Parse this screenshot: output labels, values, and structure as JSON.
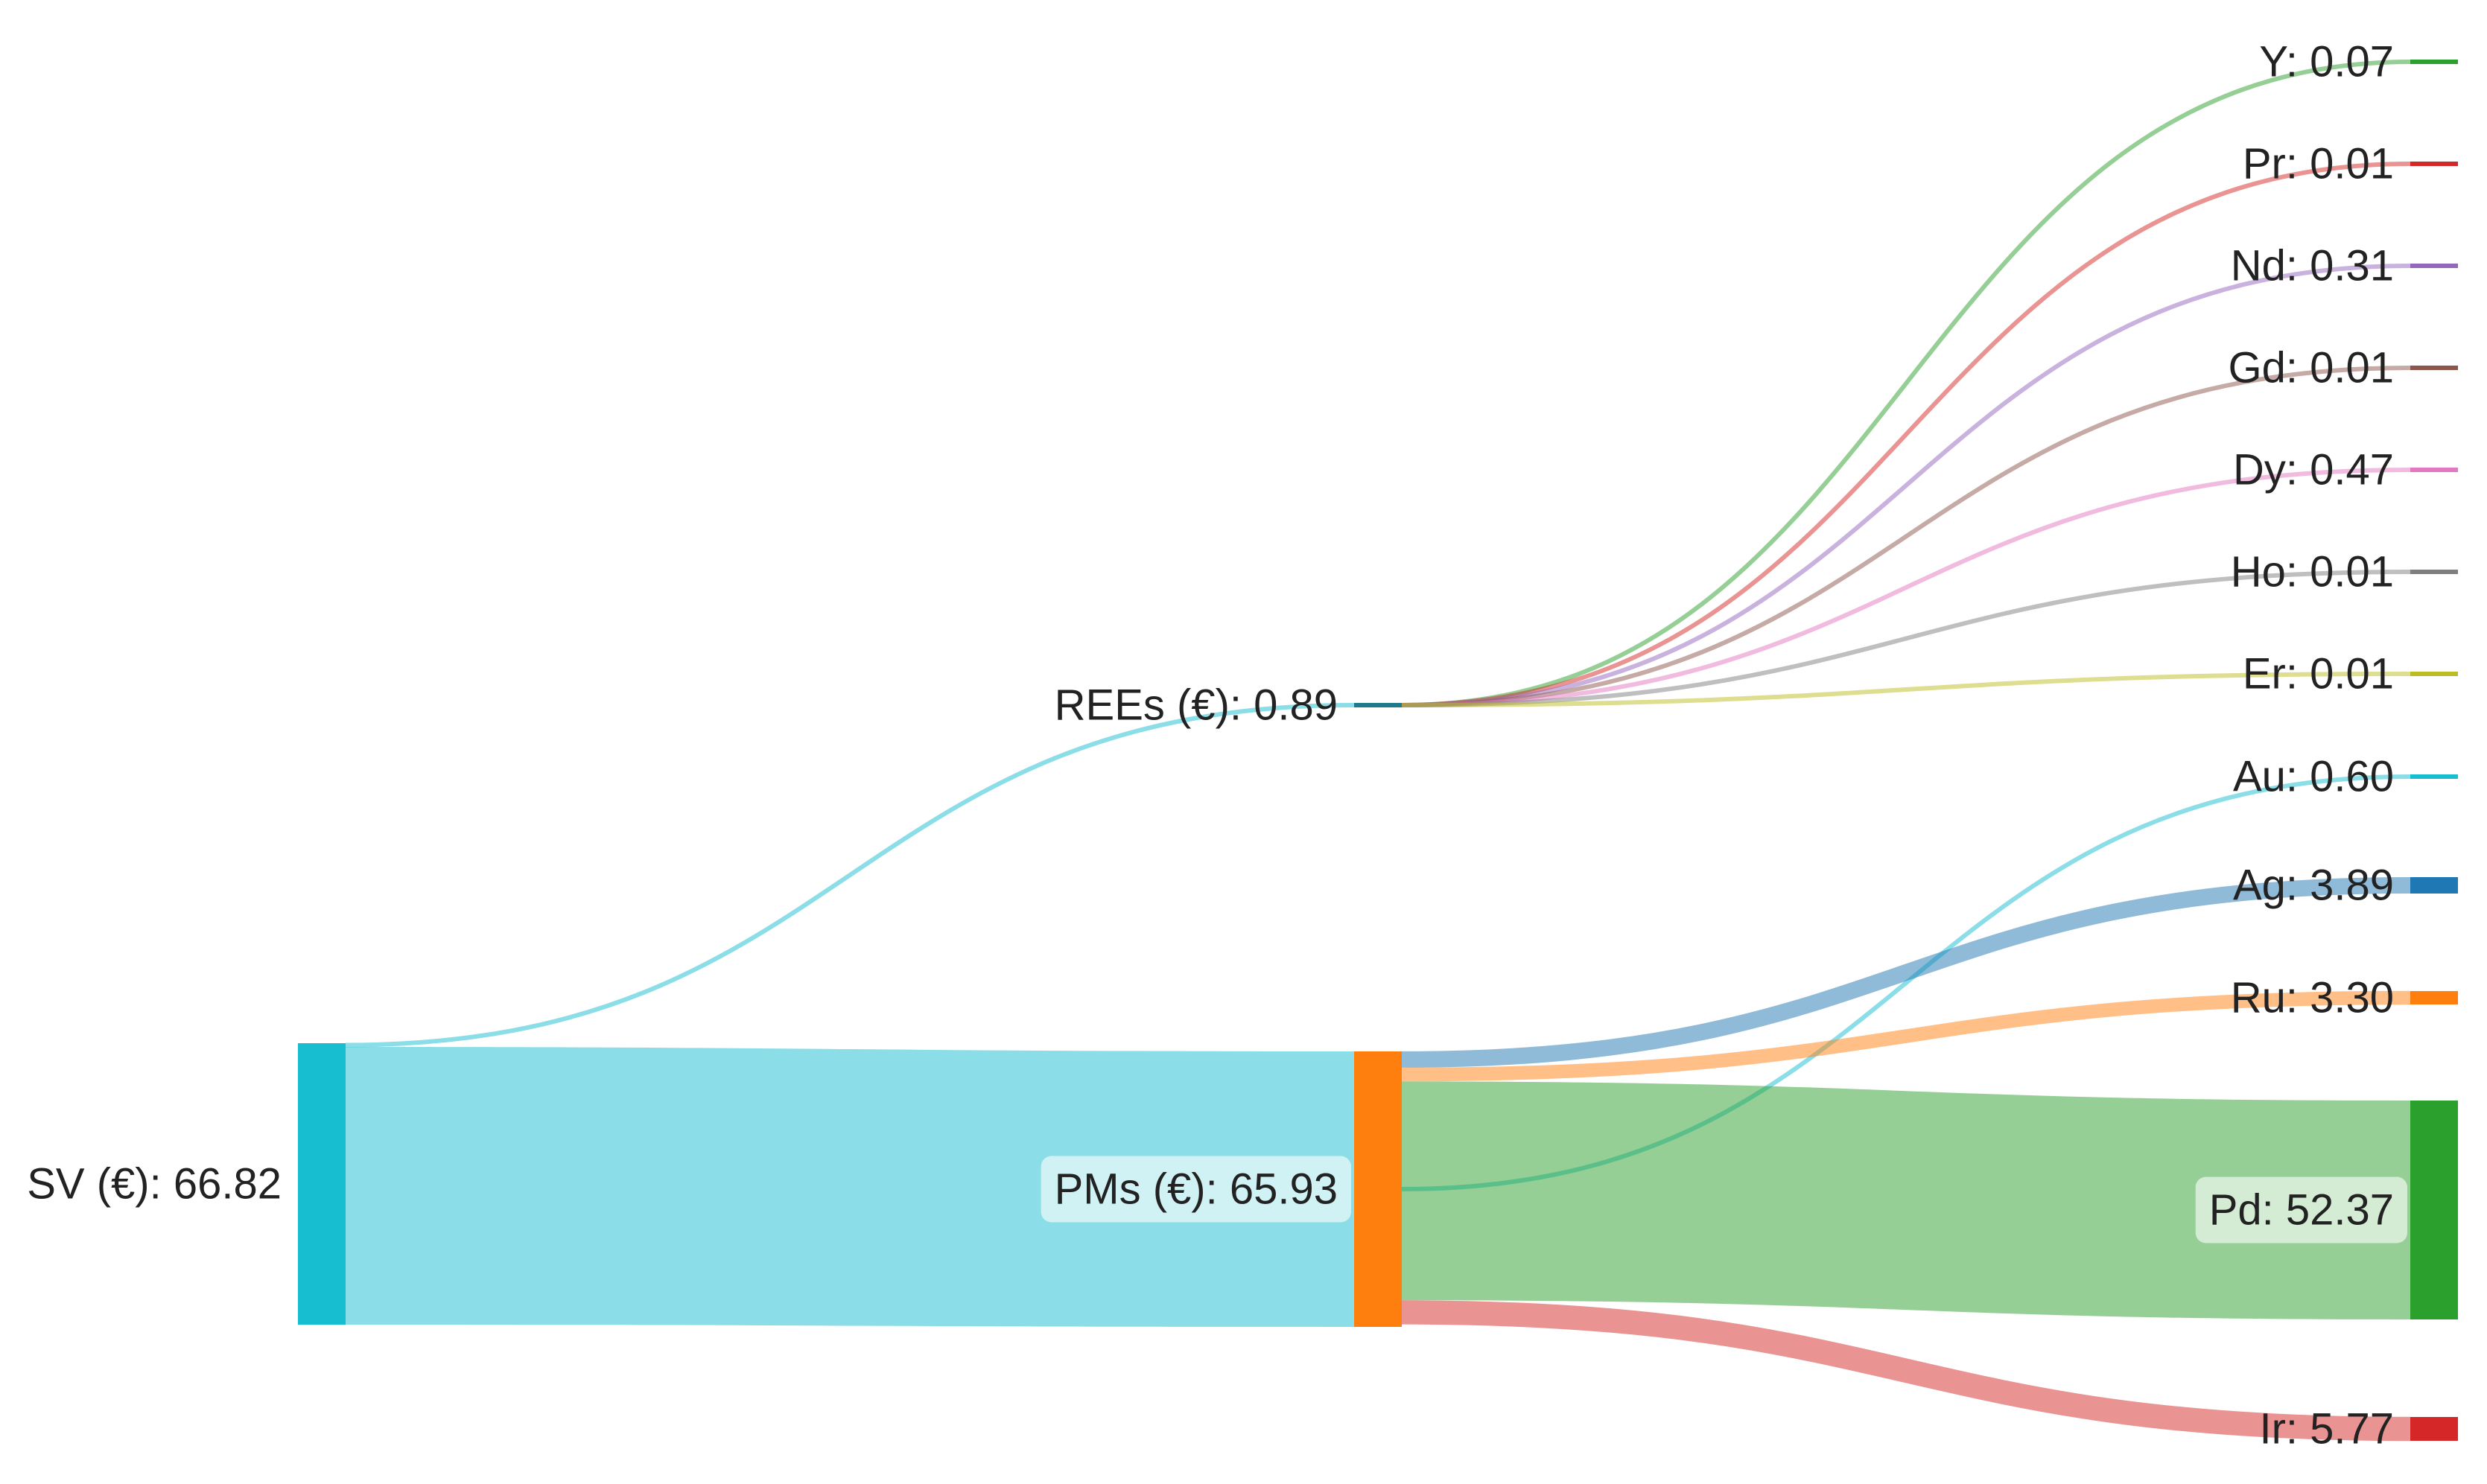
{
  "chart_data": {
    "type": "sankey",
    "nodes": [
      {
        "id": "SV",
        "label": "SV (€): 66.82",
        "value": 66.82,
        "color": "#17becf"
      },
      {
        "id": "REEs",
        "label": "REEs (€): 0.89",
        "value": 0.89,
        "color": "#1f7a8c"
      },
      {
        "id": "PMs",
        "label": "PMs (€): 65.93",
        "value": 65.93,
        "color": "#ff7f0e"
      },
      {
        "id": "Y",
        "label": "Y: 0.07",
        "value": 0.07,
        "color": "#2ca02c"
      },
      {
        "id": "Pr",
        "label": "Pr: 0.01",
        "value": 0.01,
        "color": "#d62728"
      },
      {
        "id": "Nd",
        "label": "Nd: 0.31",
        "value": 0.31,
        "color": "#9467bd"
      },
      {
        "id": "Gd",
        "label": "Gd: 0.01",
        "value": 0.01,
        "color": "#8c564b"
      },
      {
        "id": "Dy",
        "label": "Dy: 0.47",
        "value": 0.47,
        "color": "#e377c2"
      },
      {
        "id": "Ho",
        "label": "Ho: 0.01",
        "value": 0.01,
        "color": "#7f7f7f"
      },
      {
        "id": "Er",
        "label": "Er: 0.01",
        "value": 0.01,
        "color": "#bcbd22"
      },
      {
        "id": "Au",
        "label": "Au: 0.60",
        "value": 0.6,
        "color": "#17becf"
      },
      {
        "id": "Ag",
        "label": "Ag: 3.89",
        "value": 3.89,
        "color": "#1f77b4"
      },
      {
        "id": "Ru",
        "label": "Ru: 3.30",
        "value": 3.3,
        "color": "#ff7f0e"
      },
      {
        "id": "Pd",
        "label": "Pd: 52.37",
        "value": 52.37,
        "color": "#2ca02c"
      },
      {
        "id": "Ir",
        "label": "Ir: 5.77",
        "value": 5.77,
        "color": "#d62728"
      }
    ],
    "links": [
      {
        "source": "SV",
        "target": "REEs",
        "value": 0.89,
        "color": "#17becf"
      },
      {
        "source": "SV",
        "target": "PMs",
        "value": 65.93,
        "color": "#17becf"
      },
      {
        "source": "REEs",
        "target": "Y",
        "value": 0.07,
        "color": "#2ca02c"
      },
      {
        "source": "REEs",
        "target": "Pr",
        "value": 0.01,
        "color": "#d62728"
      },
      {
        "source": "REEs",
        "target": "Nd",
        "value": 0.31,
        "color": "#9467bd"
      },
      {
        "source": "REEs",
        "target": "Gd",
        "value": 0.01,
        "color": "#8c564b"
      },
      {
        "source": "REEs",
        "target": "Dy",
        "value": 0.47,
        "color": "#e377c2"
      },
      {
        "source": "REEs",
        "target": "Ho",
        "value": 0.01,
        "color": "#7f7f7f"
      },
      {
        "source": "REEs",
        "target": "Er",
        "value": 0.01,
        "color": "#bcbd22"
      },
      {
        "source": "PMs",
        "target": "Au",
        "value": 0.6,
        "color": "#17becf"
      },
      {
        "source": "PMs",
        "target": "Ag",
        "value": 3.89,
        "color": "#1f77b4"
      },
      {
        "source": "PMs",
        "target": "Ru",
        "value": 3.3,
        "color": "#ff7f0e"
      },
      {
        "source": "PMs",
        "target": "Pd",
        "value": 52.37,
        "color": "#2ca02c"
      },
      {
        "source": "PMs",
        "target": "Ir",
        "value": 5.77,
        "color": "#d62728"
      }
    ]
  }
}
